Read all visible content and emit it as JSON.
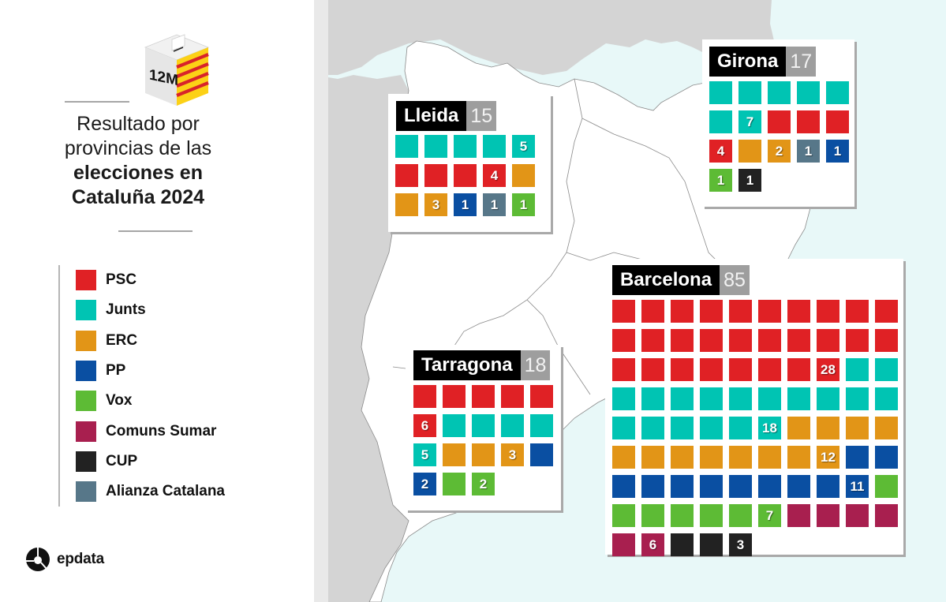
{
  "header": {
    "badge": "12M",
    "title_line1": "Resultado por",
    "title_line2": "provincias de las",
    "title_line3": "elecciones en",
    "title_line4": "Cataluña 2024"
  },
  "legend": [
    {
      "party": "PSC",
      "color": "#e02125"
    },
    {
      "party": "Junts",
      "color": "#00c4b3"
    },
    {
      "party": "ERC",
      "color": "#e29517"
    },
    {
      "party": "PP",
      "color": "#0a4fa2"
    },
    {
      "party": "Vox",
      "color": "#5dbb35"
    },
    {
      "party": "Comuns Sumar",
      "color": "#a81f4f"
    },
    {
      "party": "CUP",
      "color": "#222222"
    },
    {
      "party": "Alianza Catalana",
      "color": "#577789"
    }
  ],
  "brand": {
    "name": "epdata"
  },
  "map_colors": {
    "land_outside": "#d4d4d4",
    "catalonia": "#ffffff",
    "sea": "#e8f8f8",
    "border": "#777777"
  },
  "chart_data": {
    "type": "waffle",
    "title": "Resultado por provincias de las elecciones en Cataluña 2024",
    "legend": [
      "PSC",
      "Junts",
      "ERC",
      "PP",
      "Vox",
      "Comuns Sumar",
      "CUP",
      "Alianza Catalana"
    ],
    "provinces": [
      {
        "name": "Lleida",
        "total_seats": 15,
        "seats": {
          "Junts": 5,
          "PSC": 4,
          "ERC": 3,
          "PP": 1,
          "Alianza Catalana": 1,
          "Vox": 1
        }
      },
      {
        "name": "Girona",
        "total_seats": 17,
        "seats": {
          "Junts": 7,
          "PSC": 4,
          "ERC": 2,
          "Alianza Catalana": 1,
          "PP": 1,
          "Vox": 1,
          "CUP": 1
        }
      },
      {
        "name": "Tarragona",
        "total_seats": 18,
        "seats": {
          "PSC": 6,
          "Junts": 5,
          "ERC": 3,
          "PP": 2,
          "Vox": 2
        }
      },
      {
        "name": "Barcelona",
        "total_seats": 85,
        "seats": {
          "PSC": 28,
          "Junts": 18,
          "ERC": 12,
          "PP": 11,
          "Vox": 7,
          "Comuns Sumar": 6,
          "CUP": 3
        }
      }
    ]
  },
  "provinces": {
    "lleida": {
      "name": "Lleida",
      "seats": "15"
    },
    "girona": {
      "name": "Girona",
      "seats": "17"
    },
    "tarragona": {
      "name": "Tarragona",
      "seats": "18"
    },
    "barcelona": {
      "name": "Barcelona",
      "seats": "85"
    }
  }
}
